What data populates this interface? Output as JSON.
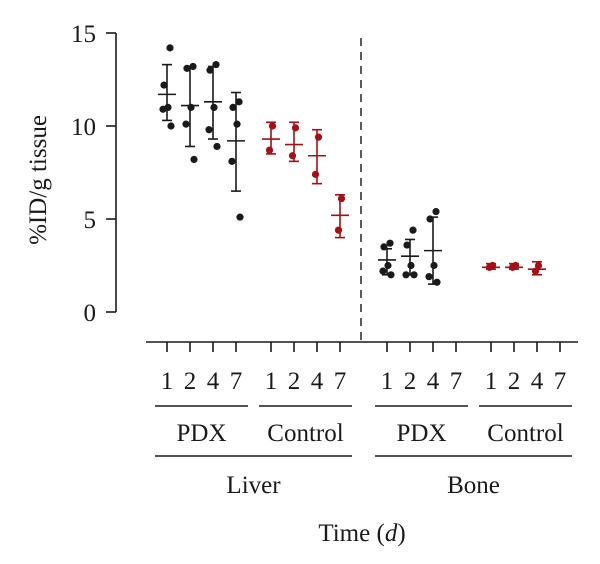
{
  "chart_data": {
    "type": "scatter",
    "ylabel": "%ID/g tissue",
    "xlabel_prefix": "Time (",
    "xlabel_unit": "d",
    "xlabel_suffix": ")",
    "ylim": [
      0,
      15
    ],
    "yticks": [
      0,
      5,
      10,
      15
    ],
    "tissues": [
      "Liver",
      "Bone"
    ],
    "groups": [
      "PDX",
      "Control"
    ],
    "timepoints": [
      "1",
      "2",
      "4",
      "7"
    ],
    "colors": {
      "PDX": "#1a1a1a",
      "Control": "#a50f15"
    },
    "separator": "dashed vertical line between Liver and Bone",
    "series": [
      {
        "tissue": "Liver",
        "group": "PDX",
        "time": "1",
        "points": [
          14.2,
          12.2,
          11.0,
          10.9,
          10.0
        ],
        "mean": 11.7,
        "err": [
          10.3,
          13.3
        ]
      },
      {
        "tissue": "Liver",
        "group": "PDX",
        "time": "2",
        "points": [
          13.2,
          13.1,
          11.0,
          10.1,
          8.2
        ],
        "mean": 11.1,
        "err": [
          8.9,
          13.2
        ]
      },
      {
        "tissue": "Liver",
        "group": "PDX",
        "time": "4",
        "points": [
          13.3,
          13.0,
          11.0,
          9.8,
          8.9
        ],
        "mean": 11.3,
        "err": [
          9.3,
          13.2
        ]
      },
      {
        "tissue": "Liver",
        "group": "PDX",
        "time": "7",
        "points": [
          11.3,
          11.0,
          10.1,
          8.1,
          5.1
        ],
        "mean": 9.2,
        "err": [
          6.5,
          11.8
        ]
      },
      {
        "tissue": "Liver",
        "group": "Control",
        "time": "1",
        "points": [
          10.0,
          8.7
        ],
        "mean": 9.3,
        "err": [
          8.5,
          10.2
        ]
      },
      {
        "tissue": "Liver",
        "group": "Control",
        "time": "2",
        "points": [
          9.9,
          8.4
        ],
        "mean": 9.0,
        "err": [
          8.1,
          10.2
        ]
      },
      {
        "tissue": "Liver",
        "group": "Control",
        "time": "4",
        "points": [
          9.4,
          7.4
        ],
        "mean": 8.4,
        "err": [
          6.9,
          9.8
        ]
      },
      {
        "tissue": "Liver",
        "group": "Control",
        "time": "7",
        "points": [
          6.1,
          4.4
        ],
        "mean": 5.2,
        "err": [
          4.0,
          6.3
        ]
      },
      {
        "tissue": "Bone",
        "group": "PDX",
        "time": "1",
        "points": [
          3.7,
          3.5,
          2.5,
          2.2,
          2.0
        ],
        "mean": 2.8,
        "err": [
          2.0,
          3.4
        ]
      },
      {
        "tissue": "Bone",
        "group": "PDX",
        "time": "2",
        "points": [
          4.4,
          3.6,
          2.5,
          2.0,
          2.0
        ],
        "mean": 3.0,
        "err": [
          2.0,
          3.9
        ]
      },
      {
        "tissue": "Bone",
        "group": "PDX",
        "time": "4",
        "points": [
          5.4,
          5.0,
          2.5,
          1.9,
          1.6
        ],
        "mean": 3.3,
        "err": [
          1.5,
          5.1
        ]
      },
      {
        "tissue": "Bone",
        "group": "Control",
        "time": "1",
        "points": [
          2.5,
          2.4
        ],
        "mean": 2.4,
        "err": [
          2.3,
          2.6
        ]
      },
      {
        "tissue": "Bone",
        "group": "Control",
        "time": "2",
        "points": [
          2.5,
          2.4
        ],
        "mean": 2.4,
        "err": [
          2.3,
          2.6
        ]
      },
      {
        "tissue": "Bone",
        "group": "Control",
        "time": "4",
        "points": [
          2.5,
          2.2
        ],
        "mean": 2.3,
        "err": [
          2.0,
          2.7
        ]
      }
    ]
  }
}
